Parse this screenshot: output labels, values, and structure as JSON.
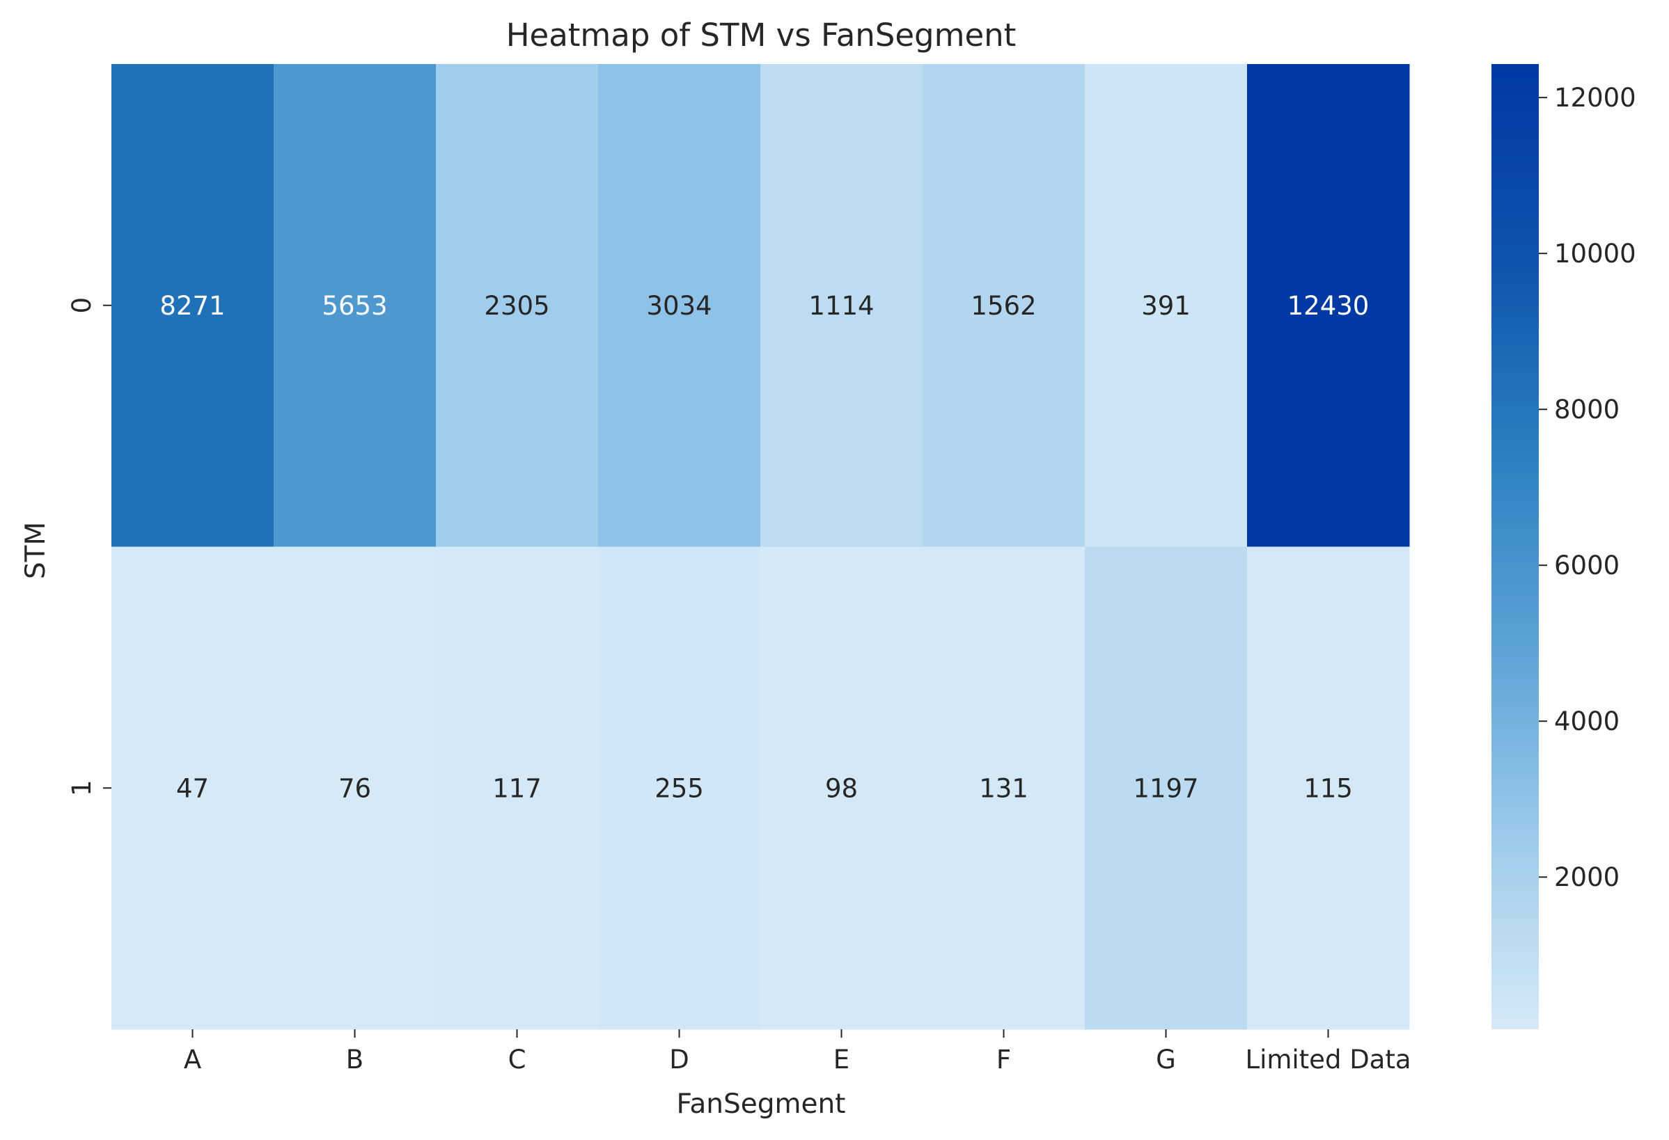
{
  "chart_data": {
    "type": "heatmap",
    "title": "Heatmap of STM vs FanSegment",
    "xlabel": "FanSegment",
    "ylabel": "STM",
    "x_categories": [
      "A",
      "B",
      "C",
      "D",
      "E",
      "F",
      "G",
      "Limited Data"
    ],
    "y_categories": [
      "0",
      "1"
    ],
    "values": [
      [
        8271,
        5653,
        2305,
        3034,
        1114,
        1562,
        391,
        12430
      ],
      [
        47,
        76,
        117,
        255,
        98,
        131,
        1197,
        115
      ]
    ],
    "colorbar": {
      "min": 47,
      "max": 12430,
      "ticks": [
        2000,
        4000,
        6000,
        8000,
        10000,
        12000
      ],
      "colors": [
        "#d6e9f7",
        "#9ccaeb",
        "#5aa1d6",
        "#2b7fbf",
        "#0d52ad",
        "#0039a3"
      ]
    },
    "annotation_colors": {
      "dark_text": "#262626",
      "light_text": "#ffffff"
    }
  }
}
